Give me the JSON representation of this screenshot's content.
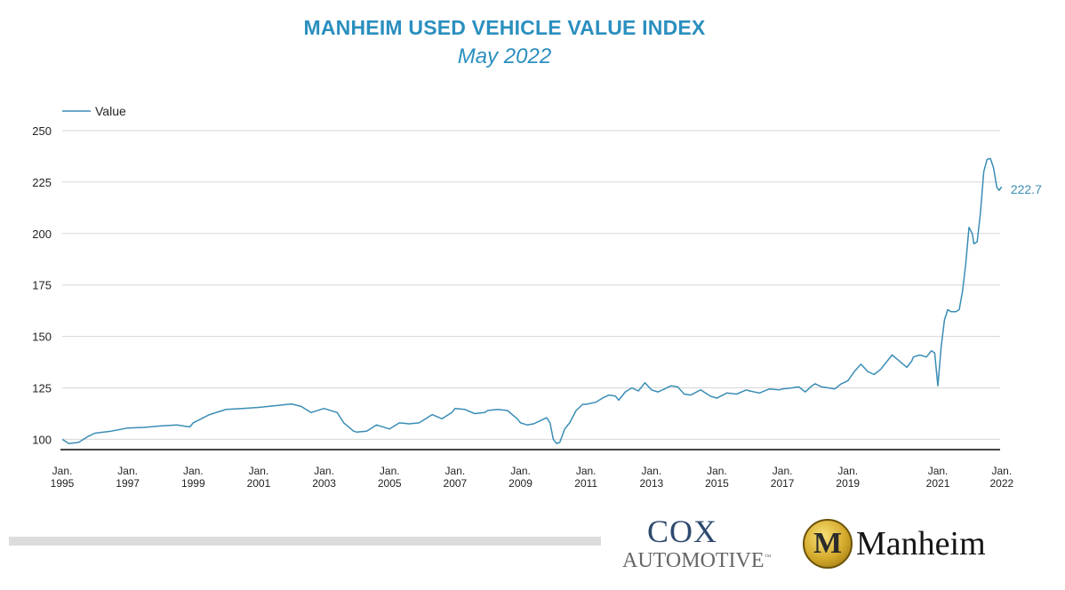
{
  "header": {
    "title": "MANHEIM USED VEHICLE VALUE INDEX",
    "subtitle": "May 2022"
  },
  "chart_data": {
    "type": "line",
    "title": "MANHEIM USED VEHICLE VALUE INDEX",
    "subtitle": "May 2022",
    "xlabel": "",
    "ylabel": "",
    "ylim": [
      95,
      250
    ],
    "yticks": [
      100,
      125,
      150,
      175,
      200,
      225,
      250
    ],
    "xtick_labels": [
      {
        "year": 1995,
        "line1": "Jan.",
        "line2": "1995"
      },
      {
        "year": 1997,
        "line1": "Jan.",
        "line2": "1997"
      },
      {
        "year": 1999,
        "line1": "Jan.",
        "line2": "1999"
      },
      {
        "year": 2001,
        "line1": "Jan.",
        "line2": "2001"
      },
      {
        "year": 2003,
        "line1": "Jan.",
        "line2": "2003"
      },
      {
        "year": 2005,
        "line1": "Jan.",
        "line2": "2005"
      },
      {
        "year": 2007,
        "line1": "Jan.",
        "line2": "2007"
      },
      {
        "year": 2009,
        "line1": "Jan.",
        "line2": "2009"
      },
      {
        "year": 2011,
        "line1": "Jan.",
        "line2": "2011"
      },
      {
        "year": 2013,
        "line1": "Jan.",
        "line2": "2013"
      },
      {
        "year": 2015,
        "line1": "Jan.",
        "line2": "2015"
      },
      {
        "year": 2017,
        "line1": "Jan.",
        "line2": "2017"
      },
      {
        "year": 2019,
        "line1": "Jan.",
        "line2": "2019"
      },
      {
        "year": 2021,
        "line1": "Jan.",
        "line2": "2021"
      },
      {
        "year": 2022,
        "line1": "Jan.",
        "line2": "2022"
      }
    ],
    "grid": true,
    "legend": "top-left",
    "series": [
      {
        "name": "Value",
        "color": "#3a8db5",
        "points": [
          [
            1995.0,
            100.0
          ],
          [
            1995.2,
            98.0
          ],
          [
            1995.5,
            98.5
          ],
          [
            1995.8,
            101.5
          ],
          [
            1996.0,
            103.0
          ],
          [
            1996.5,
            104.0
          ],
          [
            1997.0,
            105.5
          ],
          [
            1997.5,
            105.8
          ],
          [
            1998.0,
            106.5
          ],
          [
            1998.5,
            107.0
          ],
          [
            1998.9,
            106.0
          ],
          [
            1999.0,
            108.0
          ],
          [
            1999.5,
            112.0
          ],
          [
            1999.9,
            114.0
          ],
          [
            2000.0,
            114.5
          ],
          [
            2000.5,
            115.0
          ],
          [
            2001.0,
            115.5
          ],
          [
            2001.3,
            116.0
          ],
          [
            2001.6,
            116.5
          ],
          [
            2001.9,
            117.0
          ],
          [
            2002.0,
            117.2
          ],
          [
            2002.3,
            116.0
          ],
          [
            2002.6,
            113.0
          ],
          [
            2002.9,
            114.5
          ],
          [
            2003.0,
            115.0
          ],
          [
            2003.4,
            113.0
          ],
          [
            2003.6,
            108.0
          ],
          [
            2003.9,
            104.0
          ],
          [
            2004.0,
            103.5
          ],
          [
            2004.3,
            104.0
          ],
          [
            2004.6,
            107.0
          ],
          [
            2004.9,
            105.5
          ],
          [
            2005.0,
            105.0
          ],
          [
            2005.3,
            108.0
          ],
          [
            2005.6,
            107.5
          ],
          [
            2005.9,
            108.0
          ],
          [
            2006.0,
            109.0
          ],
          [
            2006.3,
            112.0
          ],
          [
            2006.6,
            110.0
          ],
          [
            2006.9,
            113.0
          ],
          [
            2007.0,
            115.0
          ],
          [
            2007.3,
            114.5
          ],
          [
            2007.6,
            112.5
          ],
          [
            2007.9,
            113.0
          ],
          [
            2008.0,
            114.0
          ],
          [
            2008.3,
            114.5
          ],
          [
            2008.6,
            114.0
          ],
          [
            2008.9,
            110.0
          ],
          [
            2009.0,
            108.0
          ],
          [
            2009.2,
            107.0
          ],
          [
            2009.4,
            107.5
          ],
          [
            2009.6,
            109.0
          ],
          [
            2009.8,
            110.5
          ],
          [
            2009.9,
            108.0
          ],
          [
            2010.0,
            100.0
          ],
          [
            2010.1,
            98.0
          ],
          [
            2010.2,
            98.5
          ],
          [
            2010.35,
            105.0
          ],
          [
            2010.5,
            108.0
          ],
          [
            2010.7,
            114.0
          ],
          [
            2010.9,
            117.0
          ],
          [
            2011.0,
            117.0
          ],
          [
            2011.3,
            118.0
          ],
          [
            2011.5,
            120.0
          ],
          [
            2011.7,
            121.5
          ],
          [
            2011.9,
            121.0
          ],
          [
            2012.0,
            119.0
          ],
          [
            2012.2,
            123.0
          ],
          [
            2012.4,
            125.0
          ],
          [
            2012.6,
            123.5
          ],
          [
            2012.8,
            127.5
          ],
          [
            2013.0,
            124.0
          ],
          [
            2013.2,
            123.0
          ],
          [
            2013.4,
            124.5
          ],
          [
            2013.6,
            126.0
          ],
          [
            2013.8,
            125.5
          ],
          [
            2014.0,
            122.0
          ],
          [
            2014.2,
            121.5
          ],
          [
            2014.5,
            124.0
          ],
          [
            2014.8,
            121.0
          ],
          [
            2015.0,
            120.0
          ],
          [
            2015.3,
            122.5
          ],
          [
            2015.6,
            122.0
          ],
          [
            2015.9,
            124.0
          ],
          [
            2016.0,
            123.5
          ],
          [
            2016.3,
            122.5
          ],
          [
            2016.6,
            124.5
          ],
          [
            2016.9,
            124.0
          ],
          [
            2017.0,
            124.5
          ],
          [
            2017.3,
            125.0
          ],
          [
            2017.5,
            125.5
          ],
          [
            2017.7,
            123.0
          ],
          [
            2017.9,
            126.0
          ],
          [
            2018.0,
            127.0
          ],
          [
            2018.2,
            125.5
          ],
          [
            2018.4,
            125.0
          ],
          [
            2018.6,
            124.5
          ],
          [
            2018.8,
            127.0
          ],
          [
            2019.0,
            128.5
          ],
          [
            2019.2,
            133.0
          ],
          [
            2019.4,
            136.5
          ],
          [
            2019.6,
            133.0
          ],
          [
            2019.8,
            131.5
          ],
          [
            2020.0,
            134.0
          ],
          [
            2020.2,
            138.0
          ],
          [
            2020.35,
            141.0
          ],
          [
            2020.5,
            139.0
          ],
          [
            2020.65,
            137.0
          ],
          [
            2020.8,
            135.0
          ],
          [
            2020.95,
            138.0
          ],
          [
            2021.0,
            140.0
          ],
          [
            2021.2,
            141.0
          ],
          [
            2021.4,
            140.0
          ],
          [
            2021.55,
            143.0
          ],
          [
            2021.65,
            142.0
          ],
          [
            2021.75,
            126.0
          ],
          [
            2021.85,
            145.0
          ],
          [
            2021.95,
            158.0
          ],
          [
            2022.05,
            163.0
          ],
          [
            2022.15,
            162.0
          ],
          [
            2022.3,
            162.0
          ],
          [
            2022.4,
            163.0
          ],
          [
            2022.5,
            172.0
          ],
          [
            2022.6,
            185.0
          ],
          [
            2022.7,
            203.0
          ],
          [
            2022.8,
            200.0
          ],
          [
            2022.85,
            195.0
          ],
          [
            2022.95,
            196.0
          ],
          [
            2023.05,
            210.0
          ],
          [
            2023.15,
            230.0
          ],
          [
            2023.25,
            236.0
          ],
          [
            2023.35,
            236.5
          ],
          [
            2023.45,
            232.0
          ],
          [
            2023.55,
            222.5
          ],
          [
            2023.62,
            221.0
          ],
          [
            2023.7,
            222.7
          ]
        ]
      }
    ],
    "end_label": "222.7"
  }
}
